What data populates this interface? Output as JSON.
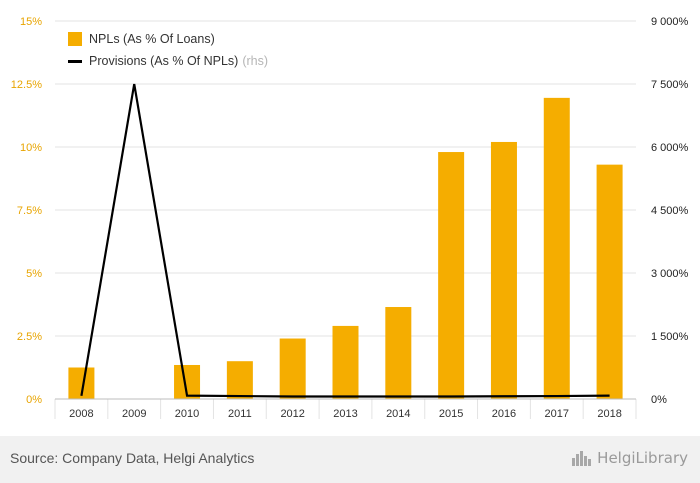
{
  "chart_data": {
    "type": "bar",
    "categories": [
      "2008",
      "2009",
      "2010",
      "2011",
      "2012",
      "2013",
      "2014",
      "2015",
      "2016",
      "2017",
      "2018"
    ],
    "series": [
      {
        "name": "NPLs (As % Of Loans)",
        "type": "bar",
        "axis": "left",
        "values": [
          1.25,
          null,
          1.35,
          1.5,
          2.4,
          2.9,
          3.65,
          9.8,
          10.2,
          11.95,
          9.3
        ]
      },
      {
        "name": "Provisions (As % Of NPLs)",
        "type": "line",
        "axis": "right",
        "values": [
          75,
          7500,
          80,
          70,
          60,
          60,
          60,
          60,
          65,
          70,
          80
        ]
      }
    ],
    "y_left": {
      "min": 0,
      "max": 15,
      "ticks": [
        0,
        2.5,
        5,
        7.5,
        10,
        12.5,
        15
      ],
      "tick_labels": [
        "0%",
        "2.5%",
        "5%",
        "7.5%",
        "10%",
        "12.5%",
        "15%"
      ]
    },
    "y_right": {
      "min": 0,
      "max": 9000,
      "ticks": [
        0,
        1500,
        3000,
        4500,
        6000,
        7500,
        9000
      ],
      "tick_labels": [
        "0%",
        "1 500%",
        "3 000%",
        "4 500%",
        "6 000%",
        "7 500%",
        "9 000%"
      ]
    },
    "grid": true,
    "legend_position": "top-left",
    "colors": {
      "bar": "#f5ad00",
      "line": "#000000",
      "grid": "#e3e3e3",
      "axis_left_text": "#e8a400",
      "axis_right_text": "#222222"
    }
  },
  "legend": {
    "npl_label": "NPLs (As % Of Loans)",
    "provisions_label": "Provisions (As % Of NPLs)",
    "rhs_tag": "(rhs)"
  },
  "footer": {
    "source": "Source: Company Data, Helgi Analytics",
    "brand": "HelgiLibrary",
    "brand_icon": "skyline-icon"
  }
}
